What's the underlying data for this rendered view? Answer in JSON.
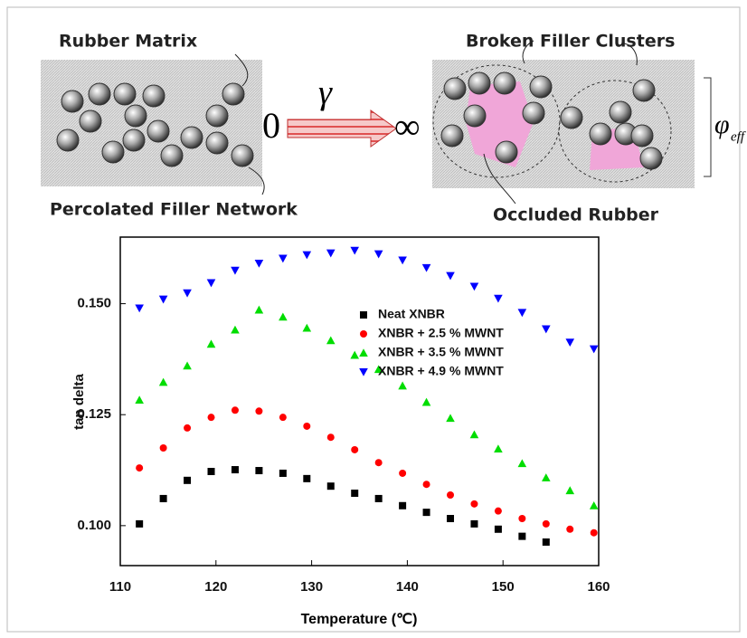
{
  "diagram": {
    "left_top": "Rubber Matrix",
    "left_bottom": "Percolated Filler Network",
    "right_top": "Broken Filler Clusters",
    "right_bottom": "Occluded Rubber",
    "start": "0",
    "symbol": "γ",
    "end": "∞",
    "phi": "φ",
    "phi_sub": "eff"
  },
  "chart_data": {
    "type": "scatter",
    "xlabel": "Temperature (℃)",
    "ylabel": "tan delta",
    "x": [
      112,
      114.5,
      117,
      119.5,
      122,
      124.5,
      127,
      129.5,
      132,
      134.5,
      137,
      139.5,
      142,
      144.5,
      147,
      149.5,
      152,
      154.5,
      157,
      159.5
    ],
    "xlim": [
      110,
      160
    ],
    "xticks": [
      110,
      120,
      130,
      140,
      150,
      160
    ],
    "ylim": [
      0.091,
      0.165
    ],
    "yticks": [
      {
        "value": 0.1,
        "label": "0.100"
      },
      0.125,
      {
        "value": 0.15,
        "label": "0.150"
      }
    ],
    "series": [
      {
        "name": "Neat XNBR",
        "color": "#000000",
        "marker": "square",
        "values": [
          0.1004,
          0.1061,
          0.1102,
          0.1122,
          0.1126,
          0.1124,
          0.1118,
          0.1106,
          0.1089,
          0.1073,
          0.1061,
          0.1045,
          0.103,
          0.1016,
          0.1004,
          0.0992,
          0.0976,
          0.0963,
          null,
          null
        ]
      },
      {
        "name": "XNBR + 2.5 % MWNT",
        "color": "#ff0000",
        "marker": "circle",
        "values": [
          0.113,
          0.1175,
          0.122,
          0.1244,
          0.126,
          0.1258,
          0.1244,
          0.1224,
          0.1199,
          0.1171,
          0.1142,
          0.1118,
          0.1093,
          0.1069,
          0.1049,
          0.1033,
          0.1016,
          0.1004,
          0.0992,
          0.0984
        ]
      },
      {
        "name": "XNBR + 3.5 % MWNT",
        "color": "#00dd00",
        "marker": "triangle-up",
        "values": [
          0.1283,
          0.1323,
          0.136,
          0.1409,
          0.1441,
          0.1486,
          0.147,
          0.1445,
          0.1417,
          0.1384,
          0.1352,
          0.1315,
          0.1278,
          0.1242,
          0.1205,
          0.1173,
          0.114,
          0.1108,
          0.1079,
          0.1045
        ]
      },
      {
        "name": "XNBR + 4.9 % MWNT",
        "color": "#0000ff",
        "marker": "triangle-down",
        "values": [
          0.149,
          0.151,
          0.1524,
          0.1547,
          0.1575,
          0.1591,
          0.1602,
          0.161,
          0.1614,
          0.162,
          0.1612,
          0.1598,
          0.1581,
          0.1563,
          0.1539,
          0.1512,
          0.148,
          0.1443,
          0.1413,
          0.1398
        ]
      }
    ]
  }
}
